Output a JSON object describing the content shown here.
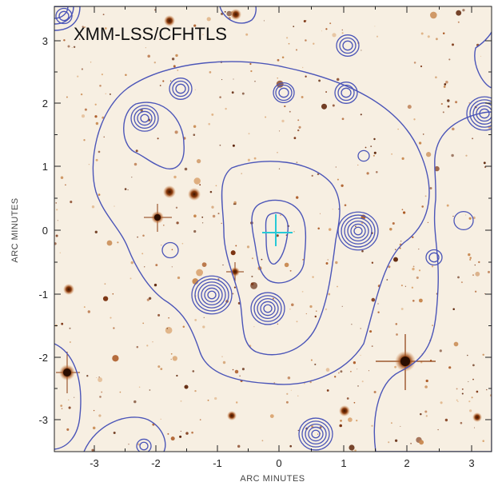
{
  "image": {
    "title": "XMM-LSS/CFHTLS",
    "x_axis_label": "ARC MINUTES",
    "y_axis_label": "ARC MINUTES",
    "x_ticks": [
      "-3",
      "-2",
      "-1",
      "0",
      "1",
      "2",
      "3"
    ],
    "y_ticks": [
      "-3",
      "-2",
      "-1",
      "0",
      "1",
      "2",
      "3"
    ],
    "colors": {
      "background": "#f7efe2",
      "contour": "#4b55b8",
      "marker": "#27c9d6",
      "source": "#6b2a08"
    },
    "marker_icon": "crosshair-icon"
  }
}
